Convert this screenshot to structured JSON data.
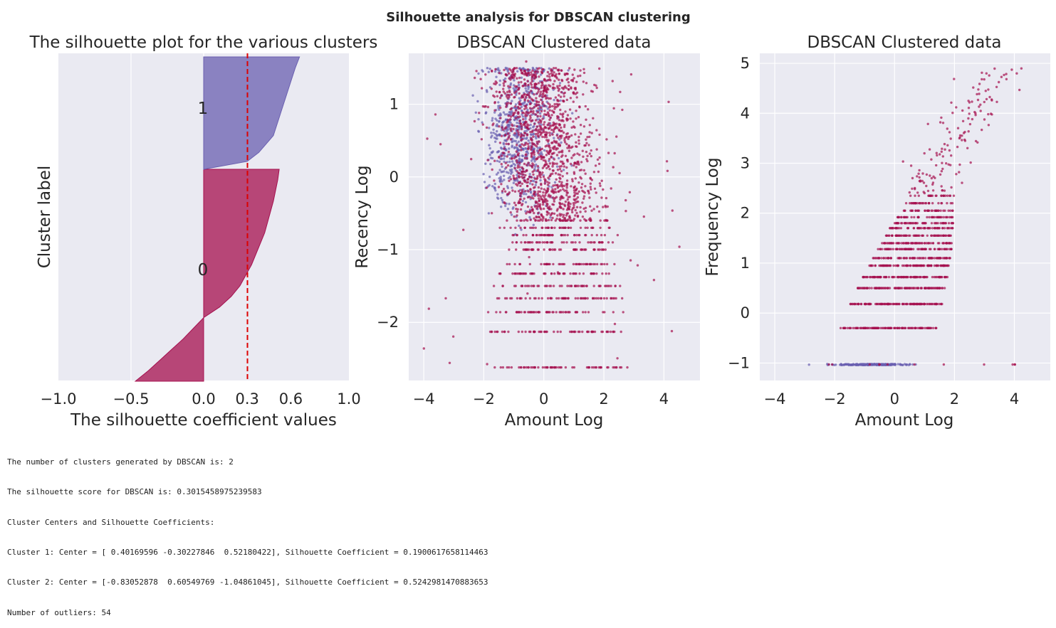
{
  "suptitle": "Silhouette analysis for DBSCAN clustering",
  "colors": {
    "background": "#eaeaf2",
    "grid": "#ffffff",
    "cluster0": "#a50f4e",
    "cluster1": "#6a5fb0",
    "mean_line": "#dd0000",
    "text": "#262626"
  },
  "chart_data": [
    {
      "type": "area",
      "title": "The silhouette plot for the various clusters",
      "xlabel": "The silhouette coefficient values",
      "ylabel": "Cluster label",
      "xlim": [
        -1.0,
        1.0
      ],
      "xticks": [
        -1.0,
        -0.5,
        0.0,
        0.3,
        0.6,
        1.0
      ],
      "xtick_labels": [
        "−1.0",
        "−0.5",
        "0.0",
        "0.3",
        "0.6",
        "1.0"
      ],
      "grid": true,
      "mean_silhouette": 0.3015,
      "clusters": [
        {
          "label": "0",
          "color": "#a50f4e",
          "profile": [
            [
              0.0,
              0.52
            ],
            [
              0.05,
              0.51
            ],
            [
              0.15,
              0.48
            ],
            [
              0.3,
              0.42
            ],
            [
              0.45,
              0.33
            ],
            [
              0.55,
              0.25
            ],
            [
              0.6,
              0.19
            ],
            [
              0.65,
              0.11
            ],
            [
              0.7,
              0.0
            ],
            [
              0.75,
              -0.07
            ],
            [
              0.8,
              -0.14
            ],
            [
              0.85,
              -0.22
            ],
            [
              0.9,
              -0.3
            ],
            [
              0.95,
              -0.38
            ],
            [
              1.0,
              -0.47
            ]
          ]
        },
        {
          "label": "1",
          "color": "#6a5fb0",
          "profile": [
            [
              0.0,
              0.66
            ],
            [
              0.1,
              0.63
            ],
            [
              0.3,
              0.58
            ],
            [
              0.5,
              0.53
            ],
            [
              0.7,
              0.48
            ],
            [
              0.85,
              0.38
            ],
            [
              0.93,
              0.3
            ],
            [
              1.0,
              0.0
            ]
          ]
        }
      ]
    },
    {
      "type": "scatter",
      "title": "DBSCAN Clustered data",
      "xlabel": "Amount Log",
      "ylabel": "Recency Log",
      "xlim": [
        -4.5,
        5.2
      ],
      "ylim": [
        -2.8,
        1.7
      ],
      "xticks": [
        -4,
        -2,
        0,
        2,
        4
      ],
      "xtick_labels": [
        "−4",
        "−2",
        "0",
        "2",
        "4"
      ],
      "yticks": [
        -2,
        -1,
        0,
        1
      ],
      "ytick_labels": [
        "−2",
        "−1",
        "0",
        "1"
      ],
      "grid": true,
      "series": [
        {
          "cluster": 0,
          "color": "#a50f4e",
          "x_mean": 0.4,
          "y_mean": -0.3,
          "x_sd": 0.95,
          "y_sd": 0.8
        },
        {
          "cluster": 1,
          "color": "#6a5fb0",
          "x_mean": -0.83,
          "y_mean": 0.6,
          "x_sd": 0.55,
          "y_sd": 0.55
        }
      ]
    },
    {
      "type": "scatter",
      "title": "DBSCAN Clustered data",
      "xlabel": "Amount Log",
      "ylabel": "Frequency Log",
      "xlim": [
        -4.5,
        5.2
      ],
      "ylim": [
        -1.35,
        5.2
      ],
      "xticks": [
        -4,
        -2,
        0,
        2,
        4
      ],
      "xtick_labels": [
        "−4",
        "−2",
        "0",
        "2",
        "4"
      ],
      "yticks": [
        -1,
        0,
        1,
        2,
        3,
        4,
        5
      ],
      "ytick_labels": [
        "−1",
        "0",
        "1",
        "2",
        "3",
        "4",
        "5"
      ],
      "grid": true,
      "series": [
        {
          "cluster": 0,
          "color": "#a50f4e",
          "x_mean": 0.4,
          "y_mean": 0.52,
          "x_sd": 0.95,
          "y_sd": 0.7
        },
        {
          "cluster": 1,
          "color": "#6a5fb0",
          "x_mean": -0.83,
          "y_mean": -1.05,
          "x_sd": 0.55,
          "y_sd": 0.0
        }
      ]
    }
  ],
  "console_output": [
    "The number of clusters generated by DBSCAN is: 2",
    "The silhouette score for DBSCAN is: 0.3015458975239583",
    "Cluster Centers and Silhouette Coefficients:",
    "Cluster 1: Center = [ 0.40169596 -0.30227846  0.52180422], Silhouette Coefficient = 0.1900617658114463",
    "Cluster 2: Center = [-0.83052878  0.60549769 -1.04861045], Silhouette Coefficient = 0.5242981470883653",
    "Number of outliers: 54"
  ]
}
